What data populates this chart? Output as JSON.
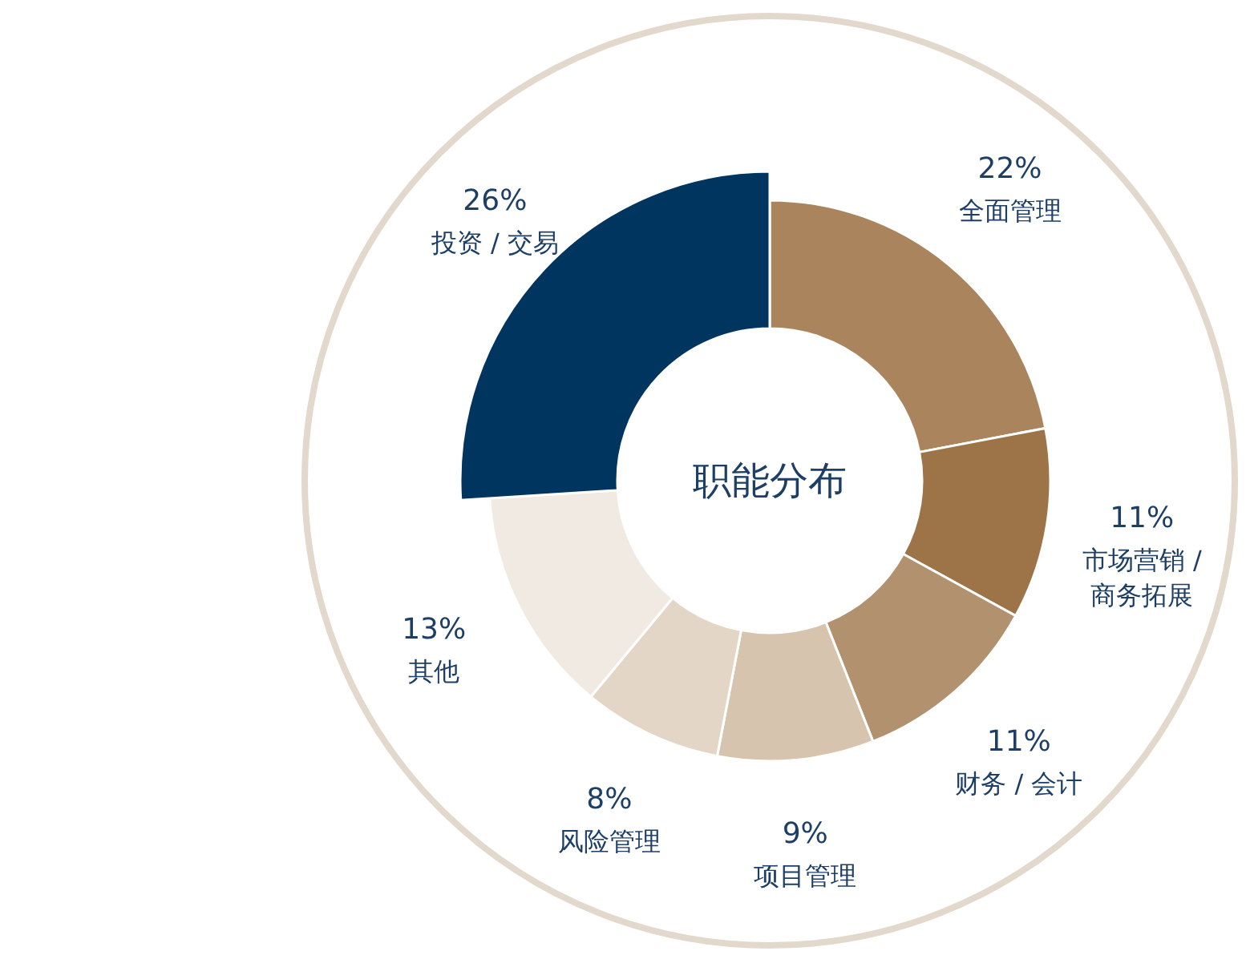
{
  "chart_data": {
    "type": "donut",
    "title": "职能分布",
    "categories": [
      "全面管理",
      "市场营销 / 商务拓展",
      "财务 / 会计",
      "项目管理",
      "风险管理",
      "其他",
      "投资 / 交易"
    ],
    "values": [
      22,
      11,
      11,
      9,
      8,
      13,
      26
    ],
    "colors": [
      "#a9845c",
      "#9c7448",
      "#b1916e",
      "#d6c4ae",
      "#e4d6c6",
      "#f1eae2",
      "#003560"
    ],
    "value_labels": [
      "22%",
      "11%",
      "11%",
      "9%",
      "8%",
      "13%",
      "26%"
    ]
  }
}
